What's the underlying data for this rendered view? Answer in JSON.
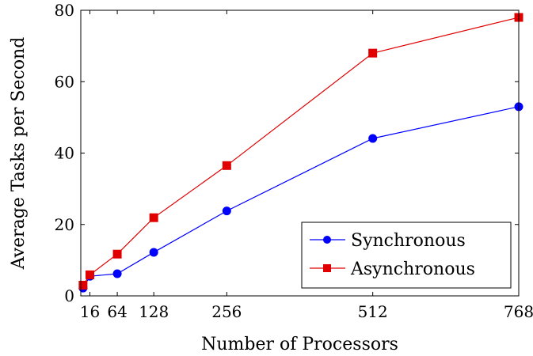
{
  "chart_data": {
    "type": "line",
    "title": "",
    "xlabel": "Number of Processors",
    "ylabel": "Average Tasks per Second",
    "xlim": [
      0,
      768
    ],
    "ylim": [
      0,
      80
    ],
    "x_ticks": [
      16,
      64,
      128,
      256,
      512,
      768
    ],
    "y_ticks": [
      0,
      20,
      40,
      60,
      80
    ],
    "grid": false,
    "legend_position": "bottom-right",
    "series": [
      {
        "name": "Synchronous",
        "color": "#0000ff",
        "marker": "circle",
        "x": [
          4,
          16,
          64,
          128,
          256,
          512,
          768
        ],
        "y": [
          2.2,
          5.5,
          6.2,
          12.2,
          23.8,
          44.1,
          53.0
        ]
      },
      {
        "name": "Asynchronous",
        "color": "#e00000",
        "marker": "square",
        "x": [
          4,
          16,
          64,
          128,
          256,
          512,
          768
        ],
        "y": [
          3.0,
          5.9,
          11.7,
          21.9,
          36.5,
          68.0,
          78.0
        ]
      }
    ]
  }
}
